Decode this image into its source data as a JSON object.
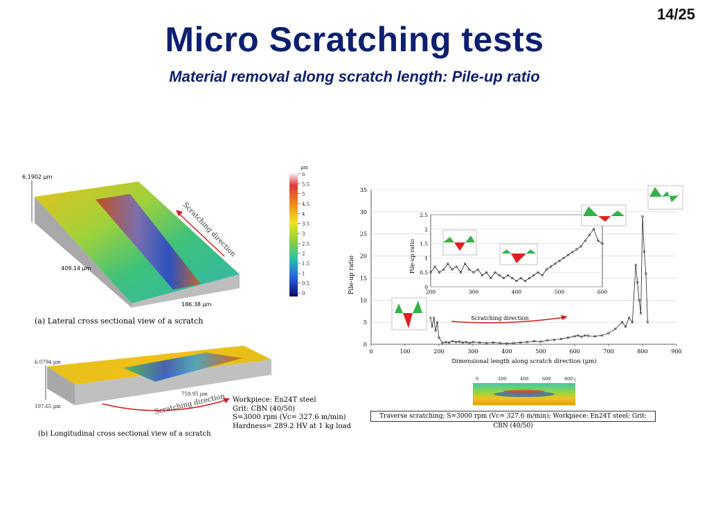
{
  "slide": {
    "page_number": "14/25",
    "title": "Micro Scratching tests",
    "subtitle": "Material removal along scratch length: Pile-up ratio"
  },
  "figure_a": {
    "z_max": "6.1902 µm",
    "y_dim": "409.14 µm",
    "x_dim": "186.38 µm",
    "direction_label": "Scratching direction",
    "caption": "(a)  Lateral cross sectional view of a scratch"
  },
  "colorbar": {
    "unit": "µm",
    "ticks": [
      "6",
      "5.5",
      "5",
      "4.5",
      "4",
      "3.5",
      "3",
      "2.5",
      "2",
      "1.5",
      "1",
      "0.5",
      "0"
    ]
  },
  "figure_b": {
    "z_max": "6.0794 µm",
    "z_min": "107.65 µm",
    "x_dim": "759.95 µm",
    "direction_label": "Scratching direction",
    "caption": "(b) Longitudinal cross sectional view of  a scratch"
  },
  "workpiece_info": {
    "line1": "Workpiece: En24T steel",
    "line2": "Grit: CBN (40/50)",
    "line3": "S=3000 rpm (Vc= 327.6 m/min)",
    "line4": "Hardness= 289.2 HV at 1 kg load"
  },
  "profile_scale": {
    "ticks": [
      "0",
      "200",
      "400",
      "600",
      "800 µm"
    ]
  },
  "info_box": "Traverse scratching; S=3000 rpm (Vc= 327.6 m/min); Workpiece: En24T steel; Grit: CBN (40/50)",
  "chart_data": [
    {
      "type": "line",
      "xlabel": "Dimensional length along scratch direction (µm)",
      "ylabel": "Pile-up ratio",
      "xlim": [
        0,
        900
      ],
      "ylim": [
        0,
        35
      ],
      "xticks": [
        "0",
        "100",
        "200",
        "300",
        "400",
        "500",
        "600",
        "700",
        "800",
        "900"
      ],
      "yticks": [
        "0",
        "5",
        "10",
        "15",
        "20",
        "25",
        "30",
        "35"
      ],
      "grid": "horizontal",
      "annotation": "Scratching direction",
      "x": [
        175,
        180,
        185,
        190,
        195,
        200,
        210,
        220,
        230,
        240,
        250,
        260,
        270,
        280,
        290,
        300,
        320,
        340,
        360,
        380,
        400,
        420,
        440,
        460,
        480,
        500,
        520,
        540,
        560,
        580,
        600,
        610,
        620,
        630,
        640,
        660,
        680,
        700,
        720,
        740,
        750,
        760,
        770,
        780,
        785,
        790,
        795,
        800,
        805,
        810,
        815
      ],
      "y": [
        6,
        4,
        6,
        3,
        5,
        1.5,
        0.3,
        0.5,
        0.4,
        0.7,
        0.5,
        0.6,
        0.4,
        0.5,
        0.3,
        0.5,
        0.4,
        0.3,
        0.4,
        0.3,
        0.2,
        0.3,
        0.4,
        0.5,
        0.7,
        0.6,
        0.9,
        1.0,
        1.2,
        1.5,
        1.8,
        2.0,
        1.7,
        2.0,
        1.9,
        1.8,
        2.0,
        2.5,
        3.5,
        5,
        4,
        6,
        5,
        18,
        14,
        10,
        7,
        29,
        21,
        16,
        5
      ]
    },
    {
      "type": "line",
      "xlabel": "",
      "ylabel": "Pile-up ratio",
      "xlim": [
        200,
        600
      ],
      "ylim": [
        0,
        2.5
      ],
      "xticks": [
        "200",
        "300",
        "400",
        "500",
        "600"
      ],
      "yticks": [
        "0",
        "0.5",
        "1",
        "1.5",
        "2",
        "2.5"
      ],
      "x": [
        200,
        210,
        220,
        230,
        240,
        250,
        260,
        270,
        280,
        290,
        300,
        310,
        320,
        330,
        340,
        350,
        360,
        370,
        380,
        390,
        400,
        410,
        420,
        430,
        440,
        450,
        460,
        470,
        480,
        490,
        500,
        510,
        520,
        530,
        540,
        550,
        560,
        570,
        580,
        590,
        600
      ],
      "y": [
        0.5,
        0.7,
        0.5,
        0.6,
        0.8,
        0.6,
        0.7,
        0.5,
        0.8,
        0.6,
        0.5,
        0.6,
        0.4,
        0.5,
        0.3,
        0.5,
        0.4,
        0.3,
        0.4,
        0.3,
        0.2,
        0.3,
        0.2,
        0.3,
        0.4,
        0.5,
        0.4,
        0.6,
        0.7,
        0.8,
        0.9,
        1.0,
        1.1,
        1.2,
        1.3,
        1.4,
        1.6,
        1.8,
        2.0,
        1.6,
        1.5
      ]
    }
  ]
}
